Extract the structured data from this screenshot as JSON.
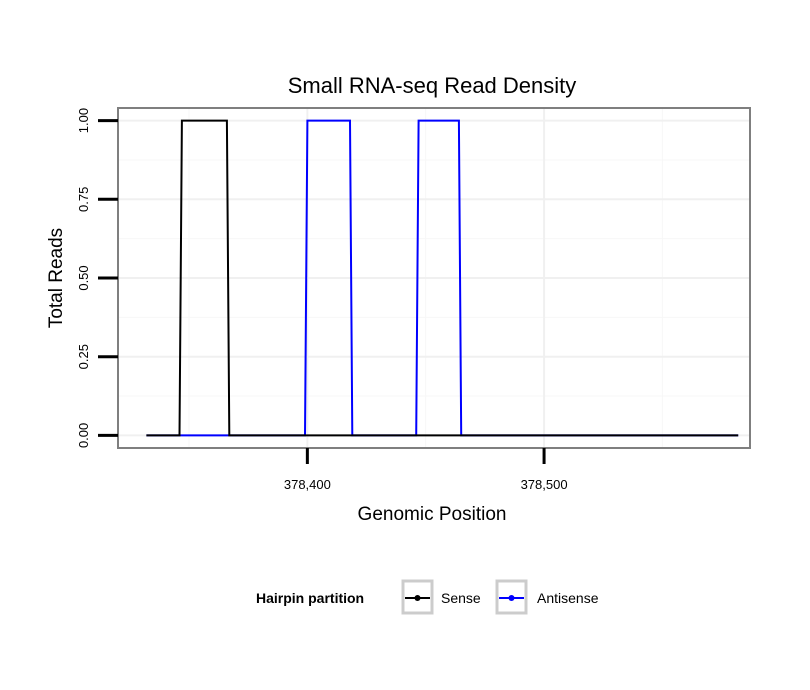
{
  "chart_data": {
    "type": "line",
    "title": "Small RNA-seq Read Density",
    "xlabel": "Genomic Position",
    "ylabel": "Total Reads",
    "xlim": [
      378320,
      378587
    ],
    "ylim": [
      -0.04,
      1.04
    ],
    "x_ticks": [
      378400,
      378500
    ],
    "x_tick_labels": [
      "378,400",
      "378,500"
    ],
    "y_ticks": [
      0,
      0.25,
      0.5,
      0.75,
      1
    ],
    "y_tick_labels": [
      "0.00",
      "0.25",
      "0.50",
      "0.75",
      "1.00"
    ],
    "grid": true,
    "legend": {
      "title": "Hairpin partition",
      "position": "bottom",
      "entries": [
        "Sense",
        "Antisense"
      ]
    },
    "series": [
      {
        "name": "Antisense",
        "color": "#0000ff",
        "x": [
          378332,
          378345,
          378346,
          378347,
          378356,
          378366,
          378367,
          378398,
          378399,
          378400,
          378409,
          378418,
          378419,
          378445,
          378446,
          378447,
          378455,
          378464,
          378465,
          378582
        ],
        "y": [
          0,
          0,
          0,
          0,
          0,
          0,
          0,
          0,
          0,
          1,
          1,
          1,
          0,
          0,
          0,
          1,
          1,
          1,
          0,
          0
        ]
      },
      {
        "name": "Sense",
        "color": "#000000",
        "x": [
          378332,
          378345,
          378346,
          378347,
          378356,
          378366,
          378367,
          378398,
          378399,
          378400,
          378409,
          378418,
          378419,
          378445,
          378446,
          378447,
          378455,
          378464,
          378465,
          378582
        ],
        "y": [
          0,
          0,
          0,
          1,
          1,
          1,
          0,
          0,
          0,
          0,
          0,
          0,
          0,
          0,
          0,
          0,
          0,
          0,
          0,
          0
        ]
      }
    ]
  }
}
